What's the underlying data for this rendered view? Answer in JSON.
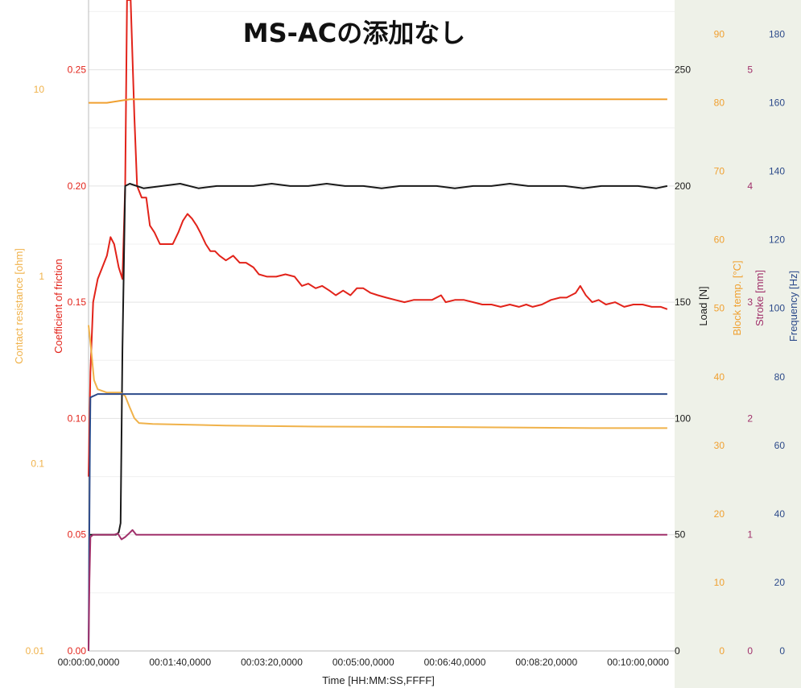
{
  "chart_data": {
    "type": "line",
    "title": "MS-ACの添加なし",
    "xlabel": "Time [HH:MM:SS,FFFF]",
    "x_unit": "seconds",
    "xlim": [
      0,
      640
    ],
    "x_tick_values": [
      0,
      100,
      200,
      300,
      400,
      500,
      600
    ],
    "x_tick_labels": [
      "00:00:00,0000",
      "00:01:40,0000",
      "00:03:20,0000",
      "00:05:00,0000",
      "00:06:40,0000",
      "00:08:20,0000",
      "00:10:00,0000"
    ],
    "grid": true,
    "colors": {
      "contact": "#f0b24a",
      "cof": "#e2231a",
      "load": "#1a1a1a",
      "block": "#f0a030",
      "stroke": "#a0306a",
      "freq": "#2c4a8a",
      "axis_band": "#eef1e8"
    },
    "axes": [
      {
        "id": "contact",
        "label": "Contact resistance [ohm]",
        "scale": "log",
        "range": [
          0.01,
          30
        ],
        "tick_values": [
          0.01,
          0.1,
          1,
          10
        ],
        "tick_labels": [
          "0.01",
          "0.1",
          "1",
          "10"
        ],
        "color": "#f0b24a"
      },
      {
        "id": "cof",
        "label": "Coefficient of friction",
        "scale": "linear",
        "range": [
          0,
          0.28
        ],
        "tick_values": [
          0,
          0.05,
          0.1,
          0.15,
          0.2,
          0.25
        ],
        "tick_labels": [
          "0.00",
          "0.05",
          "0.10",
          "0.15",
          "0.20",
          "0.25"
        ],
        "color": "#e2231a"
      },
      {
        "id": "load",
        "label": "Load [N]",
        "scale": "linear",
        "range": [
          0,
          280
        ],
        "tick_values": [
          0,
          50,
          100,
          150,
          200,
          250
        ],
        "tick_labels": [
          "0",
          "50",
          "100",
          "150",
          "200",
          "250"
        ],
        "color": "#1a1a1a"
      },
      {
        "id": "block",
        "label": "Block temp. [°C]",
        "scale": "linear",
        "range": [
          0,
          95
        ],
        "tick_values": [
          0,
          10,
          20,
          30,
          40,
          50,
          60,
          70,
          80,
          90
        ],
        "tick_labels": [
          "0",
          "10",
          "20",
          "30",
          "40",
          "50",
          "60",
          "70",
          "80",
          "90"
        ],
        "color": "#f0a030"
      },
      {
        "id": "stroke",
        "label": "Stroke [mm]",
        "scale": "linear",
        "range": [
          0,
          5.6
        ],
        "tick_values": [
          0,
          1,
          2,
          3,
          4,
          5
        ],
        "tick_labels": [
          "0",
          "1",
          "2",
          "3",
          "4",
          "5"
        ],
        "color": "#a0306a"
      },
      {
        "id": "freq",
        "label": "Frequency [Hz]",
        "scale": "linear",
        "range": [
          0,
          190
        ],
        "tick_values": [
          0,
          20,
          40,
          60,
          80,
          100,
          120,
          140,
          160,
          180
        ],
        "tick_labels": [
          "0",
          "20",
          "40",
          "60",
          "80",
          "100",
          "120",
          "140",
          "160",
          "180"
        ],
        "color": "#2c4a8a"
      }
    ],
    "series": [
      {
        "axis": "cof",
        "points": [
          [
            0,
            0.075
          ],
          [
            2,
            0.12
          ],
          [
            5,
            0.15
          ],
          [
            10,
            0.16
          ],
          [
            15,
            0.165
          ],
          [
            20,
            0.17
          ],
          [
            24,
            0.178
          ],
          [
            28,
            0.175
          ],
          [
            33,
            0.165
          ],
          [
            37,
            0.16
          ],
          [
            40,
            0.2
          ],
          [
            42,
            0.28
          ],
          [
            46,
            0.28
          ],
          [
            50,
            0.23
          ],
          [
            53,
            0.2
          ],
          [
            58,
            0.195
          ],
          [
            63,
            0.195
          ],
          [
            67,
            0.183
          ],
          [
            72,
            0.18
          ],
          [
            78,
            0.175
          ],
          [
            85,
            0.175
          ],
          [
            92,
            0.175
          ],
          [
            98,
            0.18
          ],
          [
            103,
            0.185
          ],
          [
            108,
            0.188
          ],
          [
            113,
            0.186
          ],
          [
            118,
            0.183
          ],
          [
            122,
            0.18
          ],
          [
            128,
            0.175
          ],
          [
            133,
            0.172
          ],
          [
            138,
            0.172
          ],
          [
            143,
            0.17
          ],
          [
            150,
            0.168
          ],
          [
            158,
            0.17
          ],
          [
            165,
            0.167
          ],
          [
            172,
            0.167
          ],
          [
            180,
            0.165
          ],
          [
            186,
            0.162
          ],
          [
            195,
            0.161
          ],
          [
            205,
            0.161
          ],
          [
            215,
            0.162
          ],
          [
            225,
            0.161
          ],
          [
            233,
            0.157
          ],
          [
            240,
            0.158
          ],
          [
            248,
            0.156
          ],
          [
            255,
            0.157
          ],
          [
            263,
            0.155
          ],
          [
            270,
            0.153
          ],
          [
            278,
            0.155
          ],
          [
            286,
            0.153
          ],
          [
            293,
            0.156
          ],
          [
            300,
            0.156
          ],
          [
            308,
            0.154
          ],
          [
            316,
            0.153
          ],
          [
            325,
            0.152
          ],
          [
            335,
            0.151
          ],
          [
            345,
            0.15
          ],
          [
            355,
            0.151
          ],
          [
            365,
            0.151
          ],
          [
            375,
            0.151
          ],
          [
            385,
            0.153
          ],
          [
            390,
            0.15
          ],
          [
            400,
            0.151
          ],
          [
            410,
            0.151
          ],
          [
            420,
            0.15
          ],
          [
            430,
            0.149
          ],
          [
            440,
            0.149
          ],
          [
            450,
            0.148
          ],
          [
            460,
            0.149
          ],
          [
            470,
            0.148
          ],
          [
            478,
            0.149
          ],
          [
            485,
            0.148
          ],
          [
            495,
            0.149
          ],
          [
            505,
            0.151
          ],
          [
            515,
            0.152
          ],
          [
            522,
            0.152
          ],
          [
            532,
            0.154
          ],
          [
            537,
            0.157
          ],
          [
            543,
            0.153
          ],
          [
            550,
            0.15
          ],
          [
            557,
            0.151
          ],
          [
            565,
            0.149
          ],
          [
            575,
            0.15
          ],
          [
            585,
            0.148
          ],
          [
            595,
            0.149
          ],
          [
            605,
            0.149
          ],
          [
            615,
            0.148
          ],
          [
            625,
            0.148
          ],
          [
            632,
            0.147
          ]
        ]
      },
      {
        "axis": "load",
        "points": [
          [
            0,
            50
          ],
          [
            30,
            50
          ],
          [
            33,
            51
          ],
          [
            35,
            55
          ],
          [
            37,
            130
          ],
          [
            40,
            200
          ],
          [
            45,
            201
          ],
          [
            60,
            199
          ],
          [
            80,
            200
          ],
          [
            100,
            201
          ],
          [
            120,
            199
          ],
          [
            140,
            200
          ],
          [
            160,
            200
          ],
          [
            180,
            200
          ],
          [
            200,
            201
          ],
          [
            220,
            200
          ],
          [
            240,
            200
          ],
          [
            260,
            201
          ],
          [
            280,
            200
          ],
          [
            300,
            200
          ],
          [
            320,
            199
          ],
          [
            340,
            200
          ],
          [
            360,
            200
          ],
          [
            380,
            200
          ],
          [
            400,
            199
          ],
          [
            420,
            200
          ],
          [
            440,
            200
          ],
          [
            460,
            201
          ],
          [
            480,
            200
          ],
          [
            500,
            200
          ],
          [
            520,
            200
          ],
          [
            540,
            199
          ],
          [
            560,
            200
          ],
          [
            580,
            200
          ],
          [
            600,
            200
          ],
          [
            620,
            199
          ],
          [
            632,
            200
          ]
        ]
      },
      {
        "axis": "block",
        "points": [
          [
            0,
            80
          ],
          [
            20,
            80
          ],
          [
            45,
            80.5
          ],
          [
            70,
            80.5
          ],
          [
            200,
            80.5
          ],
          [
            400,
            80.5
          ],
          [
            632,
            80.5
          ]
        ]
      },
      {
        "axis": "contact",
        "points": [
          [
            0,
            0.55
          ],
          [
            3,
            0.4
          ],
          [
            6,
            0.28
          ],
          [
            10,
            0.25
          ],
          [
            20,
            0.24
          ],
          [
            35,
            0.24
          ],
          [
            40,
            0.23
          ],
          [
            45,
            0.2
          ],
          [
            50,
            0.175
          ],
          [
            55,
            0.165
          ],
          [
            70,
            0.163
          ],
          [
            150,
            0.16
          ],
          [
            250,
            0.158
          ],
          [
            400,
            0.157
          ],
          [
            550,
            0.155
          ],
          [
            632,
            0.155
          ]
        ]
      },
      {
        "axis": "freq",
        "points": [
          [
            0,
            0
          ],
          [
            0.5,
            22
          ],
          [
            1.5,
            60
          ],
          [
            2,
            74
          ],
          [
            10,
            75
          ],
          [
            200,
            75
          ],
          [
            400,
            75
          ],
          [
            632,
            75
          ]
        ]
      },
      {
        "axis": "stroke",
        "points": [
          [
            0,
            0
          ],
          [
            1,
            0.6
          ],
          [
            2,
            0.98
          ],
          [
            5,
            1
          ],
          [
            28,
            1
          ],
          [
            32,
            1.01
          ],
          [
            36,
            0.96
          ],
          [
            40,
            0.98
          ],
          [
            44,
            1.01
          ],
          [
            48,
            1.04
          ],
          [
            52,
            1
          ],
          [
            60,
            1
          ],
          [
            200,
            1
          ],
          [
            400,
            1
          ],
          [
            632,
            1
          ]
        ]
      }
    ]
  }
}
